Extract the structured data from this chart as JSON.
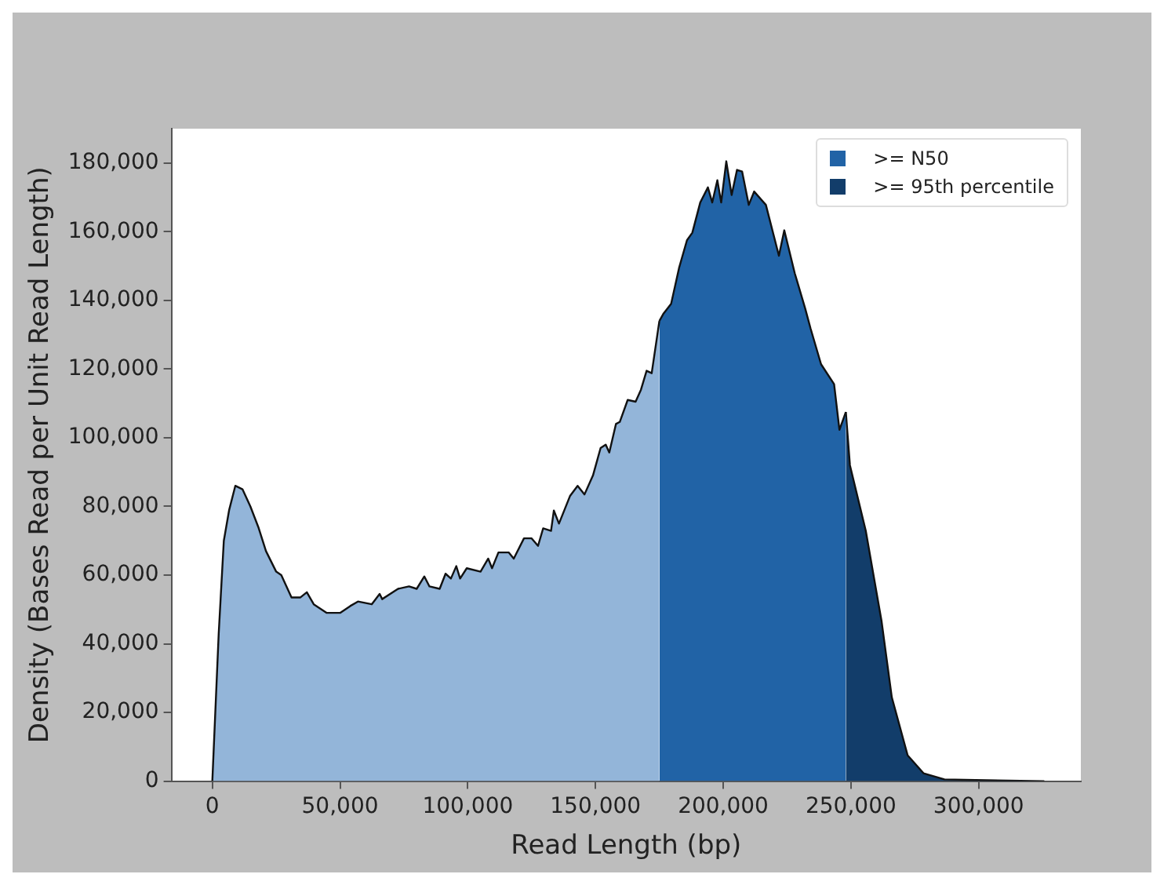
{
  "chart_data": {
    "type": "area",
    "xlabel": "Read Length (bp)",
    "ylabel": "Density (Bases Read per Unit Read Length)",
    "xlim": [
      -16000,
      340000
    ],
    "xticks": [
      {
        "value": 0,
        "label": "0"
      },
      {
        "value": 50000,
        "label": "50,000"
      },
      {
        "value": 100000,
        "label": "100,000"
      },
      {
        "value": 150000,
        "label": "150,000"
      },
      {
        "value": 200000,
        "label": "200,000"
      },
      {
        "value": 250000,
        "label": "250,000"
      },
      {
        "value": 300000,
        "label": "300,000"
      }
    ],
    "ylim": [
      0,
      190000
    ],
    "yticks": [
      {
        "value": 0,
        "label": "0"
      },
      {
        "value": 20000,
        "label": "20,000"
      },
      {
        "value": 40000,
        "label": "40,000"
      },
      {
        "value": 60000,
        "label": "60,000"
      },
      {
        "value": 80000,
        "label": "80,000"
      },
      {
        "value": 100000,
        "label": "100,000"
      },
      {
        "value": 120000,
        "label": "120,000"
      },
      {
        "value": 140000,
        "label": "140,000"
      },
      {
        "value": 160000,
        "label": "160,000"
      },
      {
        "value": 180000,
        "label": "180,000"
      }
    ],
    "grid": false,
    "legend": "top right",
    "series": [
      {
        "color": "#93b5d9",
        "x": [
          0,
          2500,
          4500,
          6600,
          9000,
          11800,
          14900,
          18000,
          21000,
          25000,
          27000,
          31000,
          34500,
          37000,
          39700,
          44800,
          50000,
          54000,
          57000,
          62400,
          65500,
          66500,
          72700,
          77000,
          80000,
          83000,
          85000,
          89000,
          91300,
          93400,
          95500,
          97000,
          99600,
          105000,
          108000,
          109500,
          112000,
          116000,
          118000,
          122000,
          125000,
          127500,
          129500,
          132600,
          133700,
          135700,
          140000,
          143000,
          145700,
          149000,
          152000,
          154000,
          155400,
          158000,
          159500,
          162600,
          165700,
          167800,
          170000,
          172000,
          175000
        ],
        "values": [
          0,
          43000,
          70000,
          79000,
          86000,
          85000,
          80000,
          74000,
          67000,
          61000,
          60000,
          53500,
          53500,
          55000,
          51500,
          49000,
          49000,
          51000,
          52300,
          51500,
          54500,
          53000,
          56000,
          56700,
          56000,
          59600,
          56700,
          56000,
          60400,
          59000,
          62600,
          59000,
          62000,
          61000,
          64800,
          62000,
          66600,
          66600,
          64800,
          70700,
          70700,
          68500,
          73600,
          72900,
          78800,
          75000,
          83000,
          86000,
          83500,
          89000,
          97000,
          98000,
          95700,
          104000,
          104600,
          111000,
          110500,
          114000,
          119500,
          118800,
          134000
        ]
      },
      {
        "name": ">= N50",
        "color": "#2163a6",
        "x": [
          175000,
          176500,
          179600,
          182700,
          185800,
          187900,
          191000,
          194000,
          195700,
          197700,
          199200,
          201200,
          203300,
          205400,
          207400,
          210000,
          212100,
          216700,
          221800,
          223900,
          228000,
          232100,
          234200,
          238300,
          243400,
          245500,
          248000
        ],
        "values": [
          134000,
          136000,
          139000,
          149400,
          157500,
          159700,
          168500,
          172900,
          168500,
          175000,
          168500,
          180500,
          170700,
          178000,
          177500,
          167800,
          171700,
          167800,
          153000,
          160400,
          147900,
          137600,
          131800,
          121400,
          115600,
          102300,
          107500
        ]
      },
      {
        "name": ">= 95th percentile",
        "color": "#123d6a",
        "x": [
          248000,
          249600,
          255800,
          262000,
          266000,
          272200,
          278400,
          286600,
          298800,
          325700
        ],
        "values": [
          107500,
          92000,
          72900,
          46500,
          24400,
          7500,
          2300,
          500,
          300,
          0
        ]
      }
    ]
  }
}
